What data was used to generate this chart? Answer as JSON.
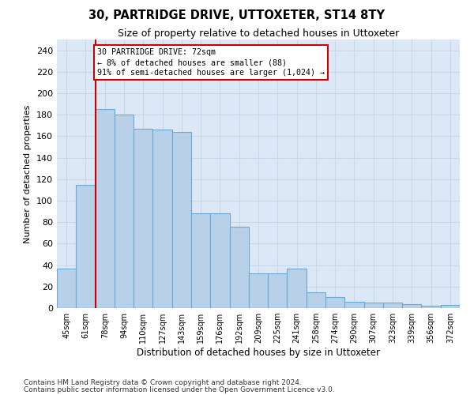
{
  "title": "30, PARTRIDGE DRIVE, UTTOXETER, ST14 8TY",
  "subtitle": "Size of property relative to detached houses in Uttoxeter",
  "xlabel": "Distribution of detached houses by size in Uttoxeter",
  "ylabel": "Number of detached properties",
  "categories": [
    "45sqm",
    "61sqm",
    "78sqm",
    "94sqm",
    "110sqm",
    "127sqm",
    "143sqm",
    "159sqm",
    "176sqm",
    "192sqm",
    "209sqm",
    "225sqm",
    "241sqm",
    "258sqm",
    "274sqm",
    "290sqm",
    "307sqm",
    "323sqm",
    "339sqm",
    "356sqm",
    "372sqm"
  ],
  "values": [
    37,
    115,
    185,
    180,
    167,
    166,
    164,
    88,
    88,
    76,
    32,
    32,
    37,
    15,
    10,
    6,
    5,
    5,
    4,
    2,
    3
  ],
  "bar_color": "#b8d0e8",
  "bar_edge_color": "#6aaad4",
  "vline_x": 1.5,
  "vline_color": "#cc0000",
  "annotation_title": "30 PARTRIDGE DRIVE: 72sqm",
  "annotation_line2": "← 8% of detached houses are smaller (88)",
  "annotation_line3": "91% of semi-detached houses are larger (1,024) →",
  "annotation_box_edgecolor": "#cc0000",
  "ylim": [
    0,
    250
  ],
  "yticks": [
    0,
    20,
    40,
    60,
    80,
    100,
    120,
    140,
    160,
    180,
    200,
    220,
    240
  ],
  "grid_color": "#c8d8ea",
  "bg_color": "#dce8f5",
  "footnote1": "Contains HM Land Registry data © Crown copyright and database right 2024.",
  "footnote2": "Contains public sector information licensed under the Open Government Licence v3.0."
}
